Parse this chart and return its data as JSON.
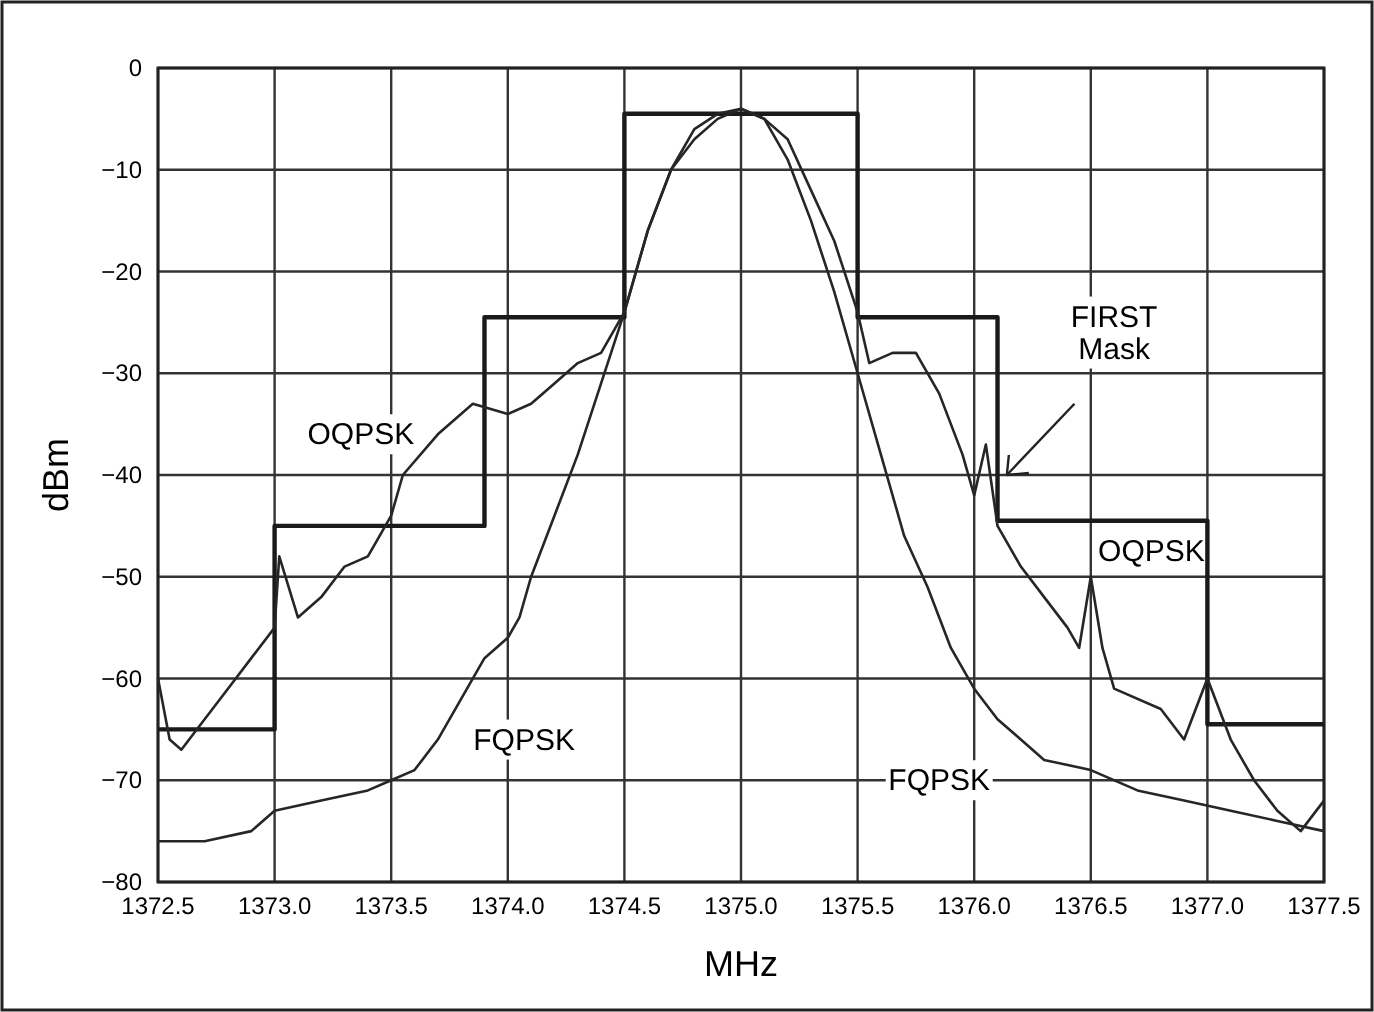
{
  "chart_data": {
    "type": "line",
    "xlabel": "MHz",
    "ylabel": "dBm",
    "xlim": [
      1372.5,
      1377.5
    ],
    "ylim": [
      -80,
      0
    ],
    "xticks": [
      1372.5,
      {
        "value": 1373,
        "label": "1373.0"
      },
      1373.5,
      {
        "value": 1374,
        "label": "1374.0"
      },
      1374.5,
      {
        "value": 1375,
        "label": "1375.0"
      },
      1375.5,
      {
        "value": 1376,
        "label": "1376.0"
      },
      1376.5,
      {
        "value": 1377,
        "label": "1377.0"
      },
      1377.5
    ],
    "yticks": [
      {
        "value": -80,
        "label": "−80"
      },
      {
        "value": -70,
        "label": "−70"
      },
      {
        "value": -60,
        "label": "−60"
      },
      {
        "value": -50,
        "label": "−50"
      },
      {
        "value": -40,
        "label": "−40"
      },
      {
        "value": -30,
        "label": "−30"
      },
      {
        "value": -20,
        "label": "−20"
      },
      {
        "value": -10,
        "label": "−10"
      },
      0
    ],
    "grid": true,
    "series": [
      {
        "type": "step",
        "color": "#1a1a1a",
        "x": [
          1372.5,
          1373,
          1373.9,
          1374.5,
          1375.5,
          1376.1,
          1377,
          1377.5
        ],
        "values": [
          -65,
          -45,
          -24.5,
          -4.5,
          -24.5,
          -44.5,
          -64.5,
          -64.5
        ]
      },
      {
        "color": "#262626",
        "x": [
          1372.5,
          1372.55,
          1372.6,
          1372.7,
          1372.8,
          1372.9,
          1373,
          1373.02,
          1373.1,
          1373.2,
          1373.3,
          1373.4,
          1373.5,
          1373.55,
          1373.7,
          1373.85,
          1374,
          1374.1,
          1374.2,
          1374.3,
          1374.4,
          1374.5,
          1374.6,
          1374.7,
          1374.8,
          1374.9,
          1375,
          1375.1,
          1375.2,
          1375.3,
          1375.4,
          1375.5,
          1375.55,
          1375.65,
          1375.75,
          1375.85,
          1375.95,
          1376,
          1376.05,
          1376.1,
          1376.2,
          1376.3,
          1376.4,
          1376.45,
          1376.5,
          1376.55,
          1376.6,
          1376.8,
          1376.9,
          1377,
          1377.1,
          1377.2,
          1377.3,
          1377.4,
          1377.5
        ],
        "values": [
          -60,
          -66,
          -67,
          -64,
          -61,
          -58,
          -55,
          -48,
          -54,
          -52,
          -49,
          -48,
          -44,
          -40,
          -36,
          -33,
          -34,
          -33,
          -31,
          -29,
          -28,
          -24,
          -16,
          -10,
          -7,
          -5,
          -4,
          -5,
          -7,
          -12,
          -17,
          -24,
          -29,
          -28,
          -28,
          -32,
          -38,
          -42,
          -37,
          -45,
          -49,
          -52,
          -55,
          -57,
          -50,
          -57,
          -61,
          -63,
          -66,
          -60,
          -66,
          -70,
          -73,
          -75,
          -72
        ]
      },
      {
        "color": "#262626",
        "x": [
          1372.5,
          1372.7,
          1372.9,
          1373,
          1373.2,
          1373.4,
          1373.5,
          1373.6,
          1373.7,
          1373.8,
          1373.9,
          1374,
          1374.05,
          1374.1,
          1374.2,
          1374.3,
          1374.4,
          1374.5,
          1374.6,
          1374.7,
          1374.8,
          1374.9,
          1375,
          1375.1,
          1375.2,
          1375.3,
          1375.4,
          1375.5,
          1375.6,
          1375.7,
          1375.8,
          1375.9,
          1376,
          1376.1,
          1376.2,
          1376.3,
          1376.5,
          1376.7,
          1376.9,
          1377.1,
          1377.3,
          1377.5
        ],
        "values": [
          -76,
          -76,
          -75,
          -73,
          -72,
          -71,
          -70,
          -69,
          -66,
          -62,
          -58,
          -56,
          -54,
          -50,
          -44,
          -38,
          -31,
          -24,
          -16,
          -10,
          -6,
          -4.5,
          -4,
          -5,
          -9,
          -15,
          -22,
          -30,
          -38,
          -46,
          -51,
          -57,
          -61,
          -64,
          -66,
          -68,
          -69,
          -71,
          -72,
          -73,
          -74,
          -75
        ]
      }
    ],
    "annotations": [
      "OQPSK",
      "OQPSK",
      "FQPSK",
      "FQPSK",
      "FIRST\nMask"
    ]
  }
}
